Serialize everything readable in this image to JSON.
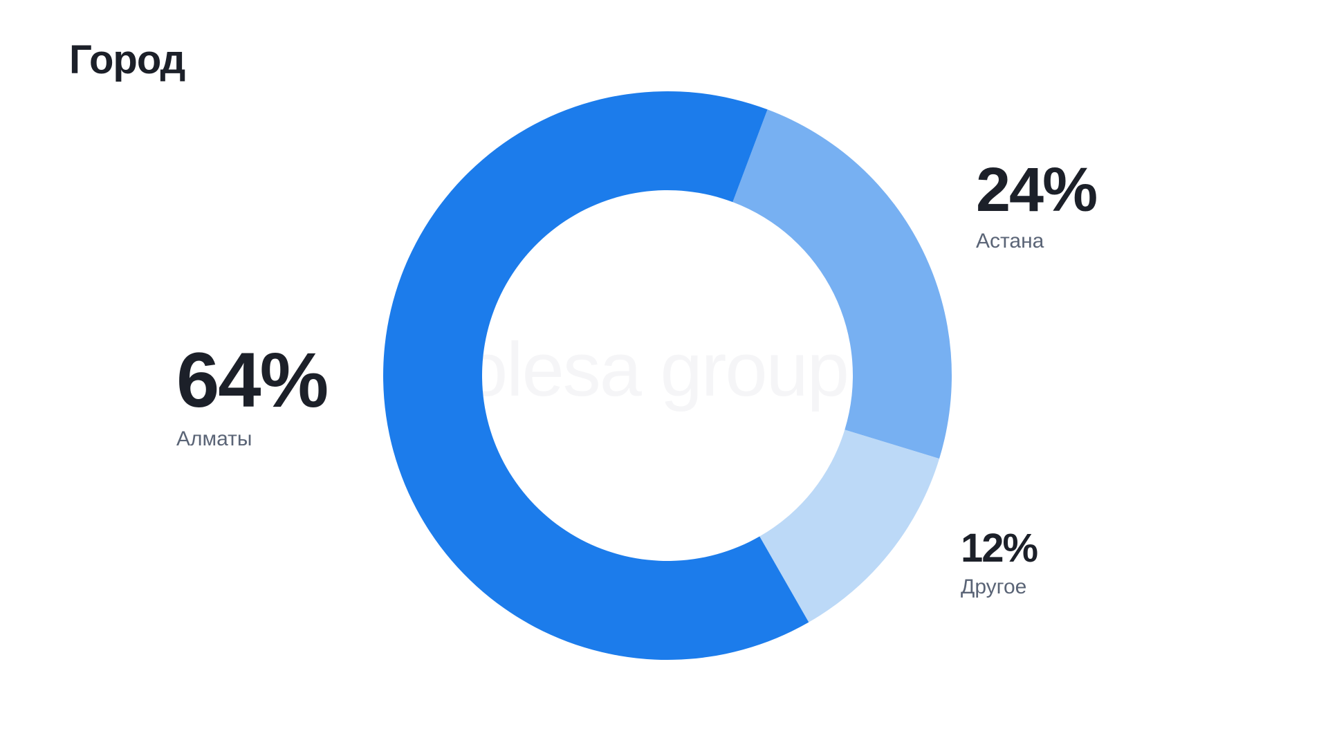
{
  "title": "Город",
  "watermark": "kolesa group",
  "chart_data": {
    "type": "pie",
    "variant": "donut",
    "categories": [
      "Алматы",
      "Астана",
      "Другое"
    ],
    "values": [
      64,
      24,
      12
    ],
    "labels": [
      "64%",
      "24%",
      "12%"
    ],
    "colors": [
      "#1c7ceb",
      "#77b0f2",
      "#bcd9f7"
    ]
  }
}
